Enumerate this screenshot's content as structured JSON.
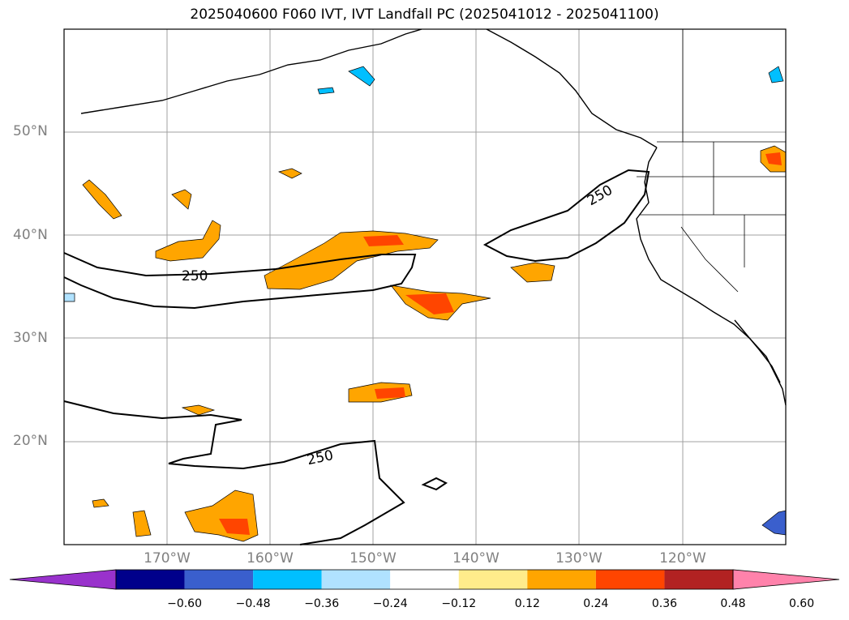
{
  "title": "2025040600 F060 IVT, IVT Landfall PC (2025041012 - 2025041100)",
  "map": {
    "lat_labels": [
      "50°N",
      "40°N",
      "30°N",
      "20°N"
    ],
    "lon_labels": [
      "170°W",
      "160°W",
      "150°W",
      "140°W",
      "130°W",
      "120°W"
    ],
    "contour_labels": [
      "250",
      "250",
      "250"
    ],
    "extent": {
      "lon_min": -180,
      "lon_max": -110,
      "lat_min": 10,
      "lat_max": 60
    }
  },
  "colorbar": {
    "ticks": [
      "−0.60",
      "−0.48",
      "−0.36",
      "−0.24",
      "−0.12",
      "0.12",
      "0.24",
      "0.36",
      "0.48",
      "0.60"
    ],
    "colors": [
      "#9932cc",
      "#00008b",
      "#3a5fcd",
      "#00bfff",
      "#b0e2ff",
      "#ffffff",
      "#ffec8b",
      "#ffa500",
      "#ff4500",
      "#b22222",
      "#ff82ab"
    ]
  }
}
